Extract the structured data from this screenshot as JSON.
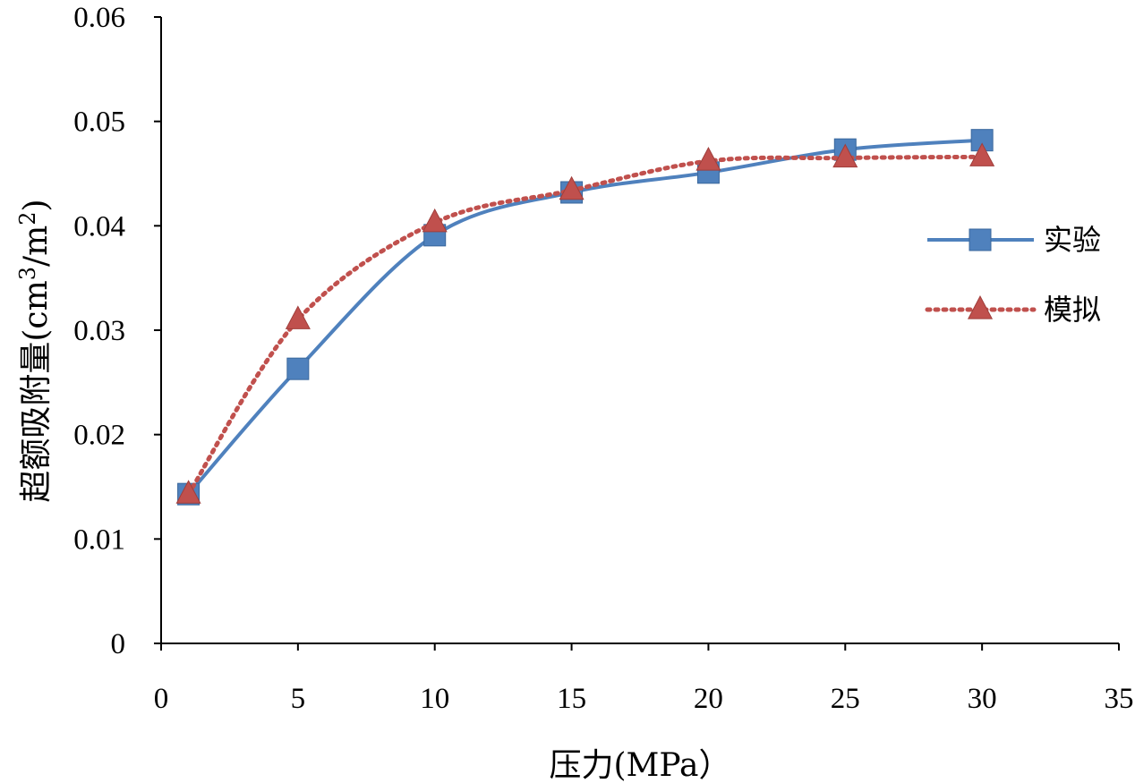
{
  "chart_data": {
    "type": "line",
    "title": "",
    "xlabel": "压力(MPa）",
    "ylabel_main": "超额吸附量(cm",
    "ylabel_sup1": "3",
    "ylabel_mid": "/m",
    "ylabel_sup2": "2",
    "ylabel_end": ")",
    "xlim": [
      0,
      35
    ],
    "ylim": [
      0,
      0.06
    ],
    "x_ticks": [
      "0",
      "5",
      "10",
      "15",
      "20",
      "25",
      "30",
      "35"
    ],
    "y_ticks": [
      "0",
      "0.01",
      "0.02",
      "0.03",
      "0.04",
      "0.05",
      "0.06"
    ],
    "grid": false,
    "legend_position": "right",
    "series": [
      {
        "name": "实验",
        "color": "#4F81BD",
        "marker": "square",
        "line_style": "solid",
        "x": [
          1,
          5,
          10,
          15,
          20,
          25,
          30
        ],
        "y": [
          0.0143,
          0.0263,
          0.0391,
          0.0432,
          0.0451,
          0.0473,
          0.0482
        ]
      },
      {
        "name": "模拟",
        "color": "#C0504D",
        "marker": "triangle",
        "line_style": "dotted",
        "x": [
          1,
          5,
          10,
          15,
          20,
          25,
          30
        ],
        "y": [
          0.0143,
          0.031,
          0.0403,
          0.0434,
          0.0462,
          0.0465,
          0.0466
        ]
      }
    ]
  }
}
